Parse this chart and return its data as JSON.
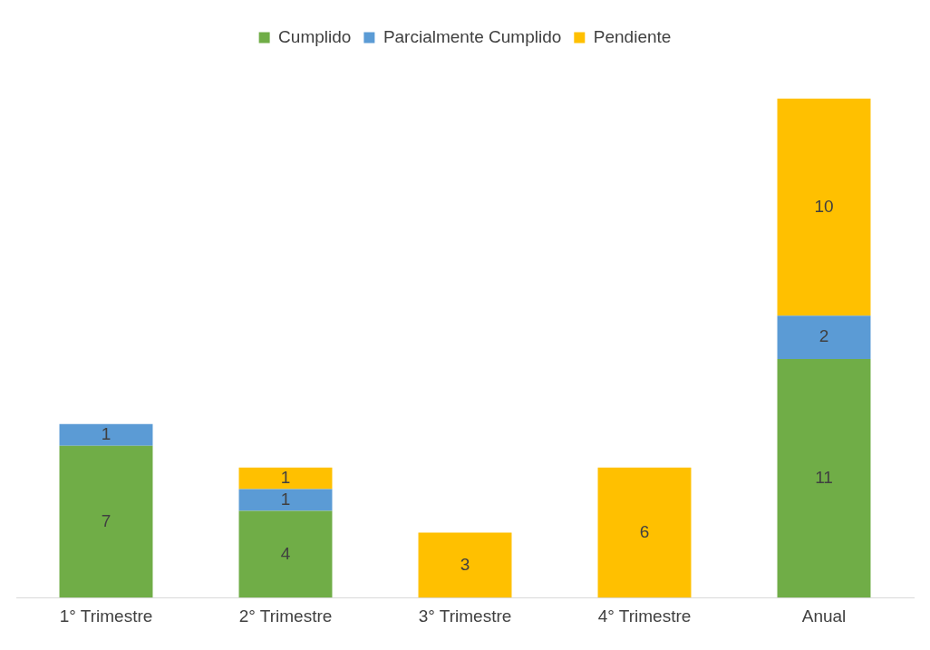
{
  "chart_data": {
    "type": "bar",
    "stacked": true,
    "categories": [
      "1° Trimestre",
      "2° Trimestre",
      "3° Trimestre",
      "4° Trimestre",
      "Anual"
    ],
    "series": [
      {
        "name": "Cumplido",
        "color": "#70ad47",
        "values": [
          7,
          4,
          null,
          null,
          11
        ]
      },
      {
        "name": "Parcialmente Cumplido",
        "color": "#5b9bd5",
        "values": [
          1,
          1,
          null,
          null,
          2
        ]
      },
      {
        "name": "Pendiente",
        "color": "#ffc000",
        "values": [
          null,
          1,
          3,
          6,
          10
        ]
      }
    ],
    "data_labels": true,
    "legend": "top",
    "grid": false
  }
}
